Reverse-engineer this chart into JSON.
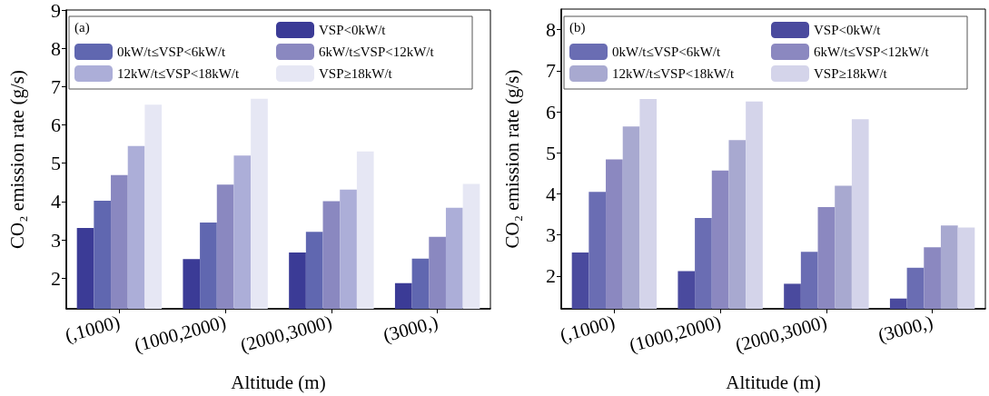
{
  "chart_data": [
    {
      "type": "bar",
      "xlabel": "Altitude (m)",
      "ylabel": "CO₂ emission rate (g/s)",
      "annotations": [
        "(a)"
      ],
      "categories": [
        "(,1000)",
        "(1000,2000)",
        "(2000,3000)",
        "(3000,)"
      ],
      "ylim": [
        1.2,
        9
      ],
      "yticks": [
        2,
        3,
        4,
        5,
        6,
        7,
        8,
        9
      ],
      "grid": false,
      "legend": "top",
      "series": [
        {
          "name": "VSP<0kW/t",
          "color": "#3b3b96",
          "values": [
            3.31,
            2.5,
            2.67,
            1.87
          ]
        },
        {
          "name": "0kW/t≤VSP<6kW/t",
          "color": "#6067b0",
          "values": [
            4.02,
            3.45,
            3.21,
            2.51
          ]
        },
        {
          "name": "6kW/t≤VSP<12kW/t",
          "color": "#8a88c0",
          "values": [
            4.69,
            4.44,
            4.01,
            3.08
          ]
        },
        {
          "name": "12kW/t≤VSP<18kW/t",
          "color": "#acaed8",
          "values": [
            5.45,
            5.2,
            4.31,
            3.84
          ]
        },
        {
          "name": "VSP≥18kW/t",
          "color": "#e6e7f4",
          "values": [
            6.53,
            6.68,
            5.31,
            4.46
          ]
        }
      ]
    },
    {
      "type": "bar",
      "xlabel": "Altitude (m)",
      "ylabel": "CO₂ emission rate (g/s)",
      "annotations": [
        "(b)"
      ],
      "categories": [
        "(,1000)",
        "(1000,2000)",
        "(2000,3000)",
        "(3000,)"
      ],
      "ylim": [
        1.2,
        8.5
      ],
      "yticks": [
        2,
        3,
        4,
        5,
        6,
        7,
        8
      ],
      "grid": false,
      "legend": "top",
      "series": [
        {
          "name": "VSP<0kW/t",
          "color": "#4a4a9e",
          "values": [
            2.57,
            2.12,
            1.81,
            1.45
          ]
        },
        {
          "name": "0kW/t≤VSP<6kW/t",
          "color": "#6a6db3",
          "values": [
            4.05,
            3.41,
            2.59,
            2.2
          ]
        },
        {
          "name": "6kW/t≤VSP<12kW/t",
          "color": "#8b88c0",
          "values": [
            4.84,
            4.57,
            3.68,
            2.7
          ]
        },
        {
          "name": "12kW/t≤VSP<18kW/t",
          "color": "#a8a9d0",
          "values": [
            5.64,
            5.31,
            4.2,
            3.23
          ]
        },
        {
          "name": "VSP≥18kW/t",
          "color": "#d4d4ea",
          "values": [
            6.31,
            6.25,
            5.82,
            3.18
          ]
        }
      ]
    }
  ]
}
